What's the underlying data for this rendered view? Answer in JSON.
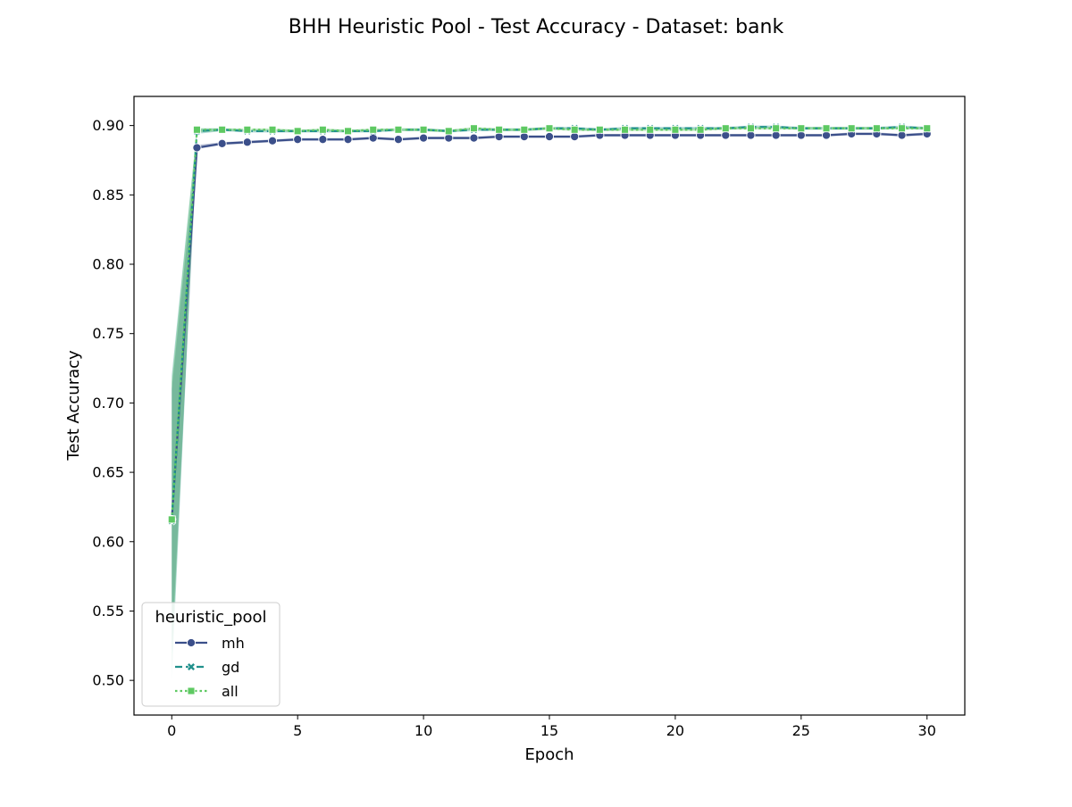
{
  "chart_data": {
    "type": "line",
    "title": "BHH Heuristic Pool - Test Accuracy - Dataset: bank",
    "xlabel": "Epoch",
    "ylabel": "Test Accuracy",
    "xlim": [
      -1.5,
      31.5
    ],
    "ylim": [
      0.475,
      0.921
    ],
    "xticks": [
      0,
      5,
      10,
      15,
      20,
      25,
      30
    ],
    "yticks": [
      0.5,
      0.55,
      0.6,
      0.65,
      0.7,
      0.75,
      0.8,
      0.85,
      0.9
    ],
    "ytick_labels": [
      "0.50",
      "0.55",
      "0.60",
      "0.65",
      "0.70",
      "0.75",
      "0.80",
      "0.85",
      "0.90"
    ],
    "grid": false,
    "legend": {
      "title": "heuristic_pool",
      "position": "lower-left"
    },
    "x": [
      0,
      1,
      2,
      3,
      4,
      5,
      6,
      7,
      8,
      9,
      10,
      11,
      12,
      13,
      14,
      15,
      16,
      17,
      18,
      19,
      20,
      21,
      22,
      23,
      24,
      25,
      26,
      27,
      28,
      29,
      30
    ],
    "series": [
      {
        "name": "mh",
        "color": "#3b4f8a",
        "dash": "solid",
        "marker": "circle",
        "values": [
          0.616,
          0.884,
          0.887,
          0.888,
          0.889,
          0.89,
          0.89,
          0.89,
          0.891,
          0.89,
          0.891,
          0.891,
          0.891,
          0.892,
          0.892,
          0.892,
          0.892,
          0.893,
          0.893,
          0.893,
          0.893,
          0.893,
          0.893,
          0.893,
          0.893,
          0.893,
          0.893,
          0.894,
          0.894,
          0.893,
          0.894
        ],
        "band_lower": [
          0.52,
          0.883,
          0.886,
          0.887,
          0.888,
          0.889,
          0.889,
          0.889,
          0.89,
          0.889,
          0.89,
          0.89,
          0.89,
          0.891,
          0.891,
          0.891,
          0.891,
          0.892,
          0.892,
          0.892,
          0.892,
          0.892,
          0.892,
          0.892,
          0.892,
          0.892,
          0.892,
          0.893,
          0.893,
          0.892,
          0.893
        ],
        "band_upper": [
          0.71,
          0.886,
          0.888,
          0.889,
          0.89,
          0.891,
          0.891,
          0.891,
          0.892,
          0.891,
          0.892,
          0.892,
          0.892,
          0.893,
          0.893,
          0.893,
          0.893,
          0.894,
          0.894,
          0.894,
          0.894,
          0.894,
          0.894,
          0.894,
          0.894,
          0.894,
          0.894,
          0.895,
          0.895,
          0.894,
          0.895
        ]
      },
      {
        "name": "gd",
        "color": "#21918c",
        "dash": "dashed",
        "marker": "x",
        "values": [
          0.615,
          0.896,
          0.897,
          0.896,
          0.896,
          0.896,
          0.896,
          0.896,
          0.896,
          0.897,
          0.897,
          0.896,
          0.897,
          0.897,
          0.897,
          0.898,
          0.898,
          0.897,
          0.898,
          0.898,
          0.898,
          0.898,
          0.898,
          0.899,
          0.899,
          0.898,
          0.898,
          0.898,
          0.898,
          0.899,
          0.898
        ],
        "band_lower": [
          0.5,
          0.894,
          0.896,
          0.895,
          0.895,
          0.895,
          0.895,
          0.895,
          0.895,
          0.896,
          0.896,
          0.895,
          0.896,
          0.896,
          0.896,
          0.897,
          0.897,
          0.896,
          0.897,
          0.897,
          0.897,
          0.897,
          0.897,
          0.898,
          0.898,
          0.897,
          0.897,
          0.897,
          0.897,
          0.898,
          0.897
        ],
        "band_upper": [
          0.72,
          0.898,
          0.898,
          0.897,
          0.897,
          0.897,
          0.897,
          0.897,
          0.897,
          0.898,
          0.898,
          0.897,
          0.898,
          0.898,
          0.898,
          0.899,
          0.899,
          0.898,
          0.899,
          0.899,
          0.899,
          0.899,
          0.899,
          0.9,
          0.9,
          0.899,
          0.899,
          0.899,
          0.899,
          0.9,
          0.899
        ]
      },
      {
        "name": "all",
        "color": "#5ec962",
        "dash": "dotted",
        "marker": "square",
        "values": [
          0.616,
          0.897,
          0.897,
          0.897,
          0.897,
          0.896,
          0.897,
          0.896,
          0.897,
          0.897,
          0.897,
          0.896,
          0.898,
          0.897,
          0.897,
          0.898,
          0.897,
          0.897,
          0.897,
          0.897,
          0.897,
          0.897,
          0.898,
          0.898,
          0.898,
          0.898,
          0.898,
          0.898,
          0.898,
          0.898,
          0.898
        ],
        "band_lower": [
          0.51,
          0.895,
          0.896,
          0.896,
          0.896,
          0.895,
          0.896,
          0.895,
          0.896,
          0.896,
          0.896,
          0.895,
          0.897,
          0.896,
          0.896,
          0.897,
          0.896,
          0.896,
          0.896,
          0.896,
          0.896,
          0.896,
          0.897,
          0.897,
          0.897,
          0.897,
          0.897,
          0.897,
          0.897,
          0.897,
          0.897
        ],
        "band_upper": [
          0.715,
          0.898,
          0.898,
          0.898,
          0.898,
          0.897,
          0.898,
          0.897,
          0.898,
          0.898,
          0.898,
          0.897,
          0.899,
          0.898,
          0.898,
          0.899,
          0.898,
          0.898,
          0.898,
          0.898,
          0.898,
          0.898,
          0.899,
          0.899,
          0.899,
          0.899,
          0.899,
          0.899,
          0.899,
          0.899,
          0.899
        ]
      }
    ]
  }
}
